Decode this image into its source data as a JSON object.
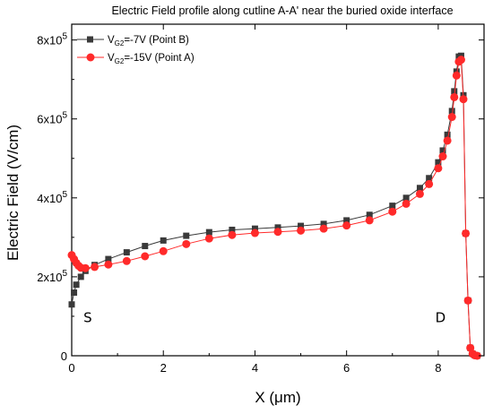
{
  "chart_data": {
    "type": "scatter",
    "title": "Electric Field profile along cutline A-A' near the buried oxide interface",
    "xlabel": "X (μm)",
    "ylabel": "Electric Field (V/cm)",
    "xlim": [
      0,
      9
    ],
    "ylim": [
      0,
      840000
    ],
    "xticks": [
      0,
      2,
      4,
      6,
      8
    ],
    "xtick_labels": [
      "0",
      "2",
      "4",
      "6",
      "8"
    ],
    "yticks": [
      0,
      200000,
      400000,
      600000,
      800000
    ],
    "ytick_labels": [
      {
        "base": "0",
        "exp": ""
      },
      {
        "base": "2x10",
        "exp": "5"
      },
      {
        "base": "4x10",
        "exp": "5"
      },
      {
        "base": "6x10",
        "exp": "5"
      },
      {
        "base": "8x10",
        "exp": "5"
      }
    ],
    "legend_position": "top-left",
    "annotations": [
      {
        "text": "S",
        "x": 0.35,
        "y": 85000
      },
      {
        "text": "D",
        "x": 8.05,
        "y": 85000
      }
    ],
    "series": [
      {
        "name_main": "V",
        "name_sub": "G2",
        "name_rest": "=-7V (Point B)",
        "color": "#3a3a3a",
        "marker": "square",
        "x": [
          0.0,
          0.05,
          0.1,
          0.2,
          0.3,
          0.5,
          0.8,
          1.2,
          1.6,
          2.0,
          2.5,
          3.0,
          3.5,
          4.0,
          4.5,
          5.0,
          5.5,
          6.0,
          6.5,
          7.0,
          7.3,
          7.6,
          7.8,
          8.0,
          8.1,
          8.2,
          8.3,
          8.35,
          8.4,
          8.45,
          8.5,
          8.55,
          8.6,
          8.65,
          8.7,
          8.75,
          8.8,
          8.85
        ],
        "y": [
          130000,
          160000,
          180000,
          200000,
          215000,
          230000,
          245000,
          262000,
          278000,
          292000,
          304000,
          313000,
          319000,
          322000,
          325000,
          329000,
          334000,
          343000,
          357000,
          380000,
          400000,
          425000,
          450000,
          490000,
          520000,
          560000,
          620000,
          670000,
          720000,
          758000,
          760000,
          660000,
          310000,
          140000,
          20000,
          5000,
          1000,
          0
        ]
      },
      {
        "name_main": "V",
        "name_sub": "G2",
        "name_rest": "=-15V (Point A)",
        "color": "#ff2a2a",
        "marker": "circle",
        "x": [
          0.0,
          0.05,
          0.1,
          0.15,
          0.2,
          0.3,
          0.5,
          0.8,
          1.2,
          1.6,
          2.0,
          2.5,
          3.0,
          3.5,
          4.0,
          4.5,
          5.0,
          5.5,
          6.0,
          6.5,
          7.0,
          7.3,
          7.6,
          7.8,
          8.0,
          8.1,
          8.2,
          8.3,
          8.35,
          8.4,
          8.45,
          8.5,
          8.55,
          8.6,
          8.65,
          8.7,
          8.75,
          8.8,
          8.85
        ],
        "y": [
          255000,
          245000,
          235000,
          228000,
          223000,
          222000,
          225000,
          231000,
          240000,
          252000,
          265000,
          283000,
          297000,
          306000,
          311000,
          314000,
          317000,
          322000,
          330000,
          343000,
          365000,
          385000,
          410000,
          435000,
          475000,
          505000,
          545000,
          605000,
          655000,
          710000,
          745000,
          750000,
          650000,
          310000,
          140000,
          20000,
          5000,
          1000,
          0
        ]
      }
    ]
  }
}
